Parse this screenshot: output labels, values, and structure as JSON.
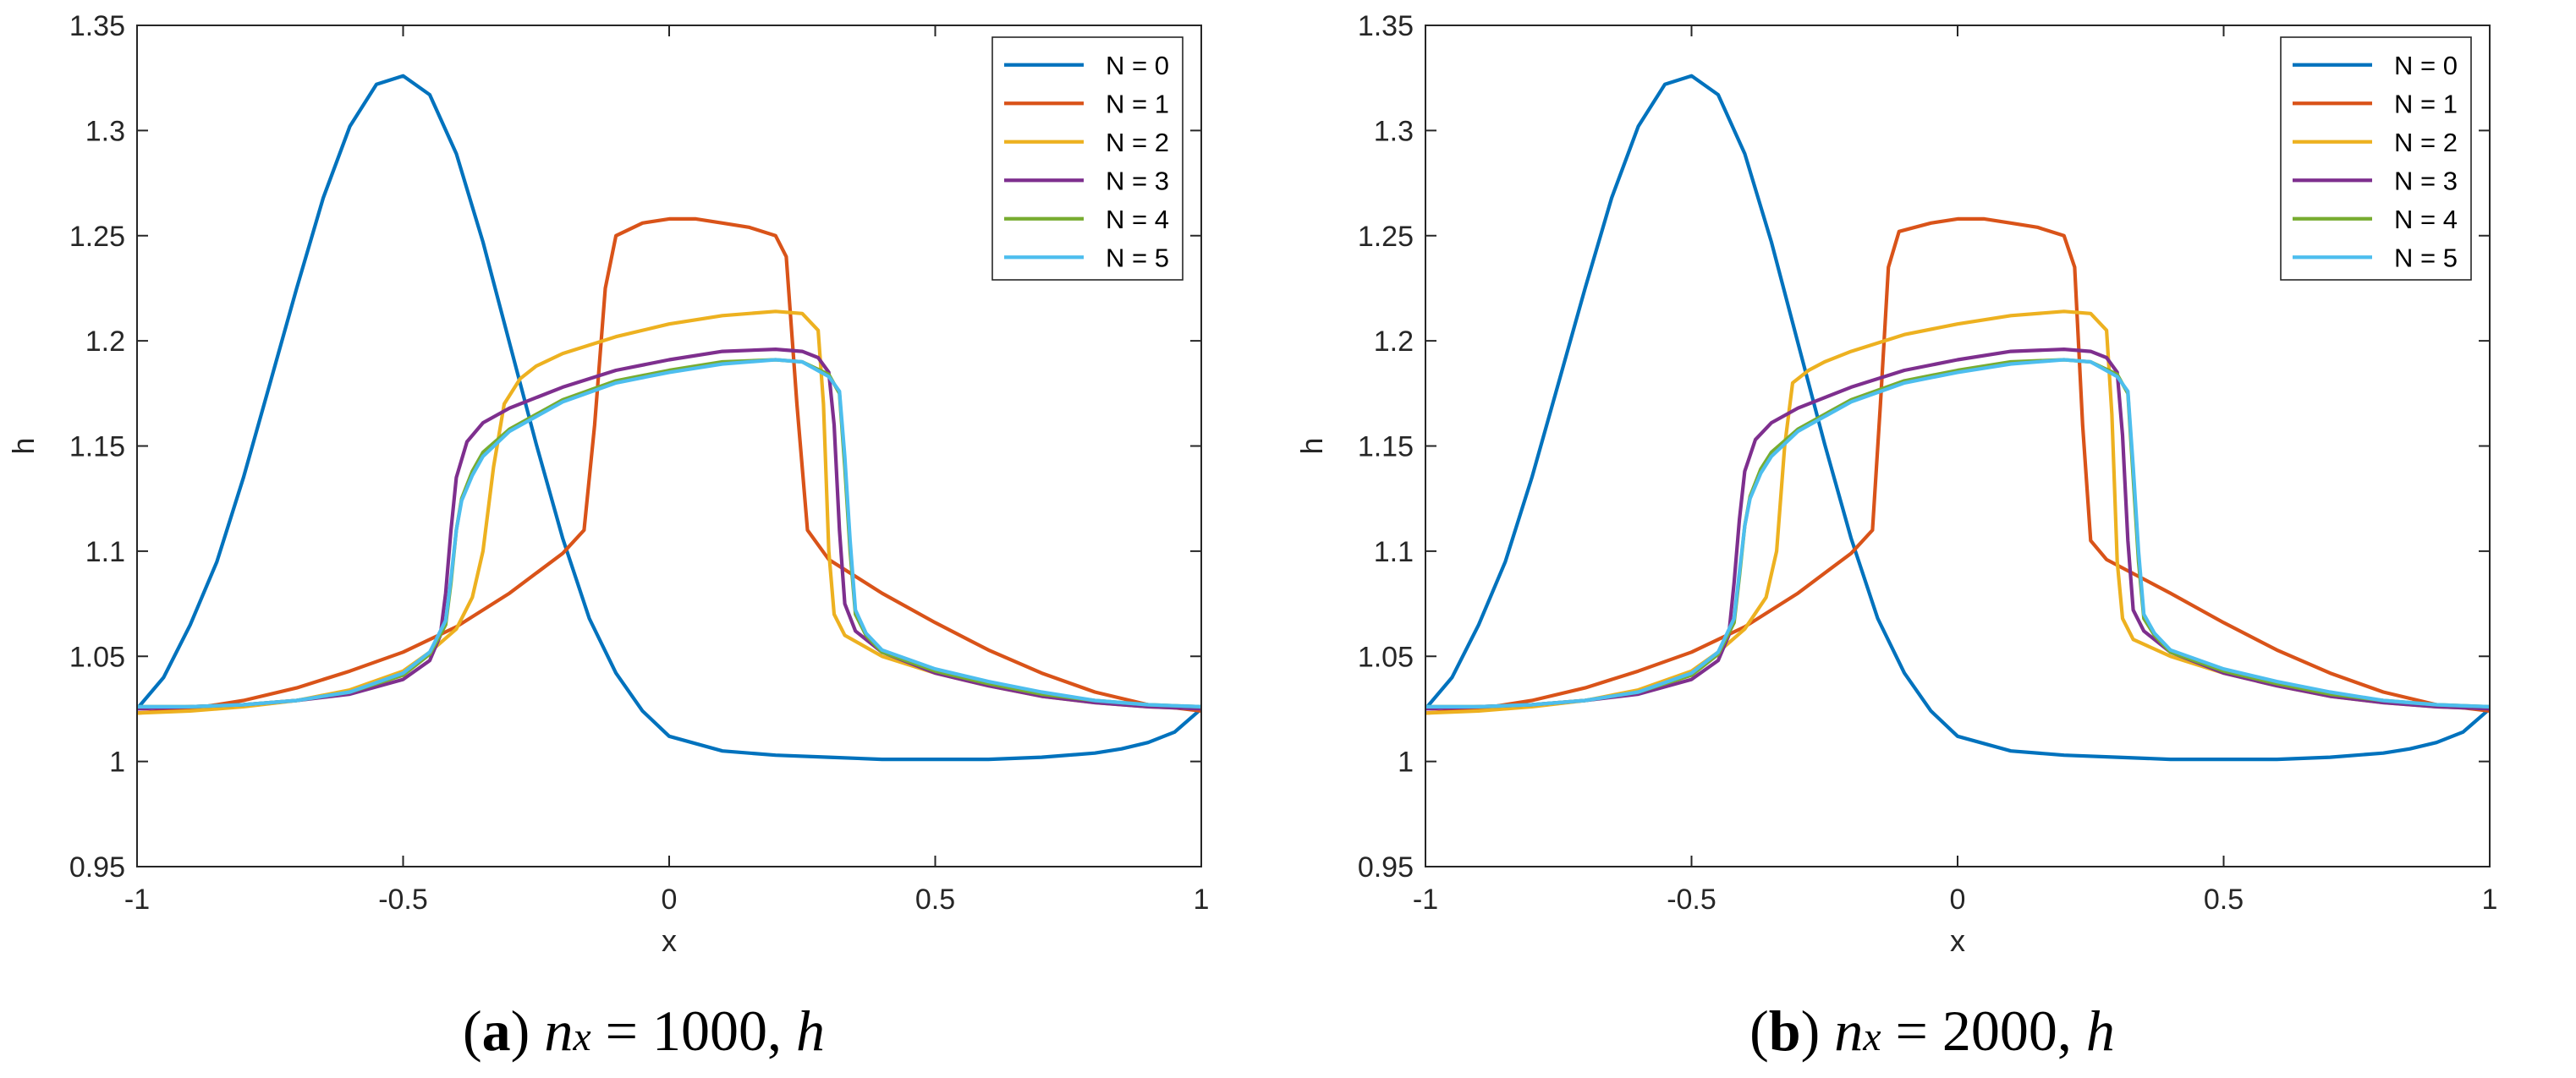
{
  "chart_data": [
    {
      "type": "line",
      "panel_label": "(a)",
      "caption": {
        "label": "a",
        "n": "n",
        "sub": "x",
        "eq": " = 1000,",
        "var": "h"
      },
      "xlabel": "x",
      "ylabel": "h",
      "xlim": [
        -1,
        1
      ],
      "ylim": [
        0.95,
        1.35
      ],
      "xticks": [
        -1,
        -0.5,
        0,
        0.5,
        1
      ],
      "yticks": [
        0.95,
        1,
        1.05,
        1.1,
        1.15,
        1.2,
        1.25,
        1.3,
        1.35
      ],
      "legend_position": "top-right",
      "series": [
        {
          "name": "N = 0",
          "color": "#0072BD",
          "x": [
            -1,
            -0.95,
            -0.9,
            -0.85,
            -0.8,
            -0.75,
            -0.7,
            -0.65,
            -0.6,
            -0.55,
            -0.5,
            -0.45,
            -0.4,
            -0.35,
            -0.3,
            -0.25,
            -0.2,
            -0.15,
            -0.1,
            -0.05,
            0,
            0.1,
            0.2,
            0.3,
            0.4,
            0.5,
            0.6,
            0.7,
            0.8,
            0.85,
            0.9,
            0.95,
            1
          ],
          "y": [
            1.025,
            1.04,
            1.065,
            1.095,
            1.135,
            1.18,
            1.225,
            1.268,
            1.302,
            1.322,
            1.326,
            1.317,
            1.289,
            1.247,
            1.199,
            1.151,
            1.106,
            1.068,
            1.042,
            1.024,
            1.012,
            1.005,
            1.003,
            1.002,
            1.001,
            1.001,
            1.001,
            1.002,
            1.004,
            1.006,
            1.009,
            1.014,
            1.025
          ]
        },
        {
          "name": "N = 1",
          "color": "#D95319",
          "x": [
            -1,
            -0.9,
            -0.8,
            -0.7,
            -0.6,
            -0.5,
            -0.4,
            -0.3,
            -0.2,
            -0.16,
            -0.14,
            -0.12,
            -0.1,
            -0.05,
            0,
            0.05,
            0.1,
            0.15,
            0.2,
            0.22,
            0.24,
            0.26,
            0.3,
            0.4,
            0.5,
            0.6,
            0.7,
            0.8,
            0.9,
            1
          ],
          "y": [
            1.023,
            1.025,
            1.029,
            1.035,
            1.043,
            1.052,
            1.064,
            1.08,
            1.099,
            1.11,
            1.16,
            1.225,
            1.25,
            1.256,
            1.258,
            1.258,
            1.256,
            1.254,
            1.25,
            1.24,
            1.17,
            1.11,
            1.096,
            1.08,
            1.066,
            1.053,
            1.042,
            1.033,
            1.027,
            1.024
          ]
        },
        {
          "name": "N = 2",
          "color": "#EDB120",
          "x": [
            -1,
            -0.9,
            -0.8,
            -0.7,
            -0.6,
            -0.5,
            -0.45,
            -0.4,
            -0.37,
            -0.35,
            -0.33,
            -0.31,
            -0.28,
            -0.25,
            -0.2,
            -0.1,
            0,
            0.1,
            0.2,
            0.25,
            0.28,
            0.29,
            0.3,
            0.31,
            0.33,
            0.4,
            0.5,
            0.6,
            0.7,
            0.8,
            0.9,
            1
          ],
          "y": [
            1.023,
            1.024,
            1.026,
            1.029,
            1.034,
            1.043,
            1.052,
            1.063,
            1.078,
            1.1,
            1.14,
            1.17,
            1.182,
            1.188,
            1.194,
            1.202,
            1.208,
            1.212,
            1.214,
            1.213,
            1.205,
            1.17,
            1.1,
            1.07,
            1.06,
            1.05,
            1.042,
            1.036,
            1.031,
            1.028,
            1.026,
            1.025
          ]
        },
        {
          "name": "N = 3",
          "color": "#7E2F8E",
          "x": [
            -1,
            -0.9,
            -0.8,
            -0.7,
            -0.6,
            -0.5,
            -0.45,
            -0.43,
            -0.42,
            -0.41,
            -0.4,
            -0.38,
            -0.35,
            -0.3,
            -0.2,
            -0.1,
            0,
            0.1,
            0.2,
            0.25,
            0.28,
            0.3,
            0.31,
            0.32,
            0.33,
            0.35,
            0.4,
            0.5,
            0.6,
            0.7,
            0.8,
            0.9,
            1
          ],
          "y": [
            1.025,
            1.026,
            1.027,
            1.029,
            1.032,
            1.039,
            1.048,
            1.06,
            1.08,
            1.11,
            1.135,
            1.152,
            1.161,
            1.168,
            1.178,
            1.186,
            1.191,
            1.195,
            1.196,
            1.195,
            1.192,
            1.185,
            1.16,
            1.11,
            1.075,
            1.062,
            1.052,
            1.042,
            1.036,
            1.031,
            1.028,
            1.026,
            1.025
          ]
        },
        {
          "name": "N = 4",
          "color": "#77AC30",
          "x": [
            -1,
            -0.9,
            -0.8,
            -0.7,
            -0.6,
            -0.5,
            -0.45,
            -0.42,
            -0.41,
            -0.4,
            -0.39,
            -0.37,
            -0.35,
            -0.3,
            -0.2,
            -0.1,
            0,
            0.1,
            0.2,
            0.25,
            0.3,
            0.32,
            0.33,
            0.34,
            0.35,
            0.37,
            0.4,
            0.5,
            0.6,
            0.7,
            0.8,
            0.9,
            1
          ],
          "y": [
            1.026,
            1.026,
            1.027,
            1.029,
            1.033,
            1.041,
            1.051,
            1.065,
            1.085,
            1.11,
            1.125,
            1.138,
            1.147,
            1.158,
            1.172,
            1.181,
            1.186,
            1.19,
            1.191,
            1.19,
            1.184,
            1.175,
            1.14,
            1.1,
            1.07,
            1.06,
            1.052,
            1.043,
            1.037,
            1.032,
            1.029,
            1.027,
            1.026
          ]
        },
        {
          "name": "N = 5",
          "color": "#4DBEEE",
          "x": [
            -1,
            -0.9,
            -0.8,
            -0.7,
            -0.6,
            -0.5,
            -0.45,
            -0.42,
            -0.41,
            -0.4,
            -0.39,
            -0.37,
            -0.35,
            -0.3,
            -0.2,
            -0.1,
            0,
            0.1,
            0.2,
            0.25,
            0.3,
            0.32,
            0.33,
            0.34,
            0.35,
            0.37,
            0.4,
            0.5,
            0.6,
            0.7,
            0.8,
            0.9,
            1
          ],
          "y": [
            1.026,
            1.026,
            1.027,
            1.029,
            1.033,
            1.042,
            1.052,
            1.067,
            1.087,
            1.11,
            1.124,
            1.136,
            1.145,
            1.157,
            1.171,
            1.18,
            1.185,
            1.189,
            1.191,
            1.19,
            1.183,
            1.176,
            1.145,
            1.105,
            1.072,
            1.061,
            1.053,
            1.044,
            1.038,
            1.033,
            1.029,
            1.027,
            1.026
          ]
        }
      ]
    },
    {
      "type": "line",
      "panel_label": "(b)",
      "caption": {
        "label": "b",
        "n": "n",
        "sub": "x",
        "eq": " = 2000,",
        "var": "h"
      },
      "xlabel": "x",
      "ylabel": "h",
      "xlim": [
        -1,
        1
      ],
      "ylim": [
        0.95,
        1.35
      ],
      "xticks": [
        -1,
        -0.5,
        0,
        0.5,
        1
      ],
      "yticks": [
        0.95,
        1,
        1.05,
        1.1,
        1.15,
        1.2,
        1.25,
        1.3,
        1.35
      ],
      "legend_position": "top-right",
      "series": [
        {
          "name": "N = 0",
          "color": "#0072BD",
          "x": [
            -1,
            -0.95,
            -0.9,
            -0.85,
            -0.8,
            -0.75,
            -0.7,
            -0.65,
            -0.6,
            -0.55,
            -0.5,
            -0.45,
            -0.4,
            -0.35,
            -0.3,
            -0.25,
            -0.2,
            -0.15,
            -0.1,
            -0.05,
            0,
            0.1,
            0.2,
            0.3,
            0.4,
            0.5,
            0.6,
            0.7,
            0.8,
            0.85,
            0.9,
            0.95,
            1
          ],
          "y": [
            1.025,
            1.04,
            1.065,
            1.095,
            1.135,
            1.18,
            1.225,
            1.268,
            1.302,
            1.322,
            1.326,
            1.317,
            1.289,
            1.247,
            1.199,
            1.151,
            1.106,
            1.068,
            1.042,
            1.024,
            1.012,
            1.005,
            1.003,
            1.002,
            1.001,
            1.001,
            1.001,
            1.002,
            1.004,
            1.006,
            1.009,
            1.014,
            1.025
          ]
        },
        {
          "name": "N = 1",
          "color": "#D95319",
          "x": [
            -1,
            -0.9,
            -0.8,
            -0.7,
            -0.6,
            -0.5,
            -0.4,
            -0.3,
            -0.2,
            -0.16,
            -0.145,
            -0.13,
            -0.11,
            -0.05,
            0,
            0.05,
            0.1,
            0.15,
            0.2,
            0.22,
            0.235,
            0.25,
            0.28,
            0.4,
            0.5,
            0.6,
            0.7,
            0.8,
            0.9,
            1
          ],
          "y": [
            1.023,
            1.025,
            1.029,
            1.035,
            1.043,
            1.052,
            1.064,
            1.08,
            1.099,
            1.11,
            1.17,
            1.235,
            1.252,
            1.256,
            1.258,
            1.258,
            1.256,
            1.254,
            1.25,
            1.235,
            1.16,
            1.105,
            1.096,
            1.08,
            1.066,
            1.053,
            1.042,
            1.033,
            1.027,
            1.024
          ]
        },
        {
          "name": "N = 2",
          "color": "#EDB120",
          "x": [
            -1,
            -0.9,
            -0.8,
            -0.7,
            -0.6,
            -0.5,
            -0.45,
            -0.4,
            -0.36,
            -0.34,
            -0.325,
            -0.31,
            -0.28,
            -0.25,
            -0.2,
            -0.1,
            0,
            0.1,
            0.2,
            0.25,
            0.28,
            0.29,
            0.3,
            0.31,
            0.33,
            0.4,
            0.5,
            0.6,
            0.7,
            0.8,
            0.9,
            1
          ],
          "y": [
            1.023,
            1.024,
            1.026,
            1.029,
            1.034,
            1.043,
            1.052,
            1.063,
            1.078,
            1.1,
            1.15,
            1.18,
            1.186,
            1.19,
            1.195,
            1.203,
            1.208,
            1.212,
            1.214,
            1.213,
            1.205,
            1.165,
            1.095,
            1.068,
            1.058,
            1.05,
            1.042,
            1.036,
            1.031,
            1.028,
            1.026,
            1.025
          ]
        },
        {
          "name": "N = 3",
          "color": "#7E2F8E",
          "x": [
            -1,
            -0.9,
            -0.8,
            -0.7,
            -0.6,
            -0.5,
            -0.45,
            -0.43,
            -0.42,
            -0.41,
            -0.4,
            -0.38,
            -0.35,
            -0.3,
            -0.2,
            -0.1,
            0,
            0.1,
            0.2,
            0.25,
            0.28,
            0.3,
            0.31,
            0.32,
            0.33,
            0.35,
            0.4,
            0.5,
            0.6,
            0.7,
            0.8,
            0.9,
            1
          ],
          "y": [
            1.025,
            1.026,
            1.027,
            1.029,
            1.032,
            1.039,
            1.048,
            1.06,
            1.085,
            1.115,
            1.138,
            1.153,
            1.161,
            1.168,
            1.178,
            1.186,
            1.191,
            1.195,
            1.196,
            1.195,
            1.192,
            1.185,
            1.155,
            1.105,
            1.072,
            1.062,
            1.052,
            1.042,
            1.036,
            1.031,
            1.028,
            1.026,
            1.025
          ]
        },
        {
          "name": "N = 4",
          "color": "#77AC30",
          "x": [
            -1,
            -0.9,
            -0.8,
            -0.7,
            -0.6,
            -0.5,
            -0.45,
            -0.42,
            -0.41,
            -0.4,
            -0.39,
            -0.37,
            -0.35,
            -0.3,
            -0.2,
            -0.1,
            0,
            0.1,
            0.2,
            0.25,
            0.3,
            0.32,
            0.33,
            0.34,
            0.35,
            0.37,
            0.4,
            0.5,
            0.6,
            0.7,
            0.8,
            0.9,
            1
          ],
          "y": [
            1.026,
            1.026,
            1.027,
            1.029,
            1.033,
            1.041,
            1.051,
            1.066,
            1.088,
            1.112,
            1.126,
            1.139,
            1.147,
            1.158,
            1.172,
            1.181,
            1.186,
            1.19,
            1.191,
            1.19,
            1.184,
            1.175,
            1.135,
            1.095,
            1.068,
            1.06,
            1.052,
            1.043,
            1.037,
            1.032,
            1.029,
            1.027,
            1.026
          ]
        },
        {
          "name": "N = 5",
          "color": "#4DBEEE",
          "x": [
            -1,
            -0.9,
            -0.8,
            -0.7,
            -0.6,
            -0.5,
            -0.45,
            -0.42,
            -0.41,
            -0.4,
            -0.39,
            -0.37,
            -0.35,
            -0.3,
            -0.2,
            -0.1,
            0,
            0.1,
            0.2,
            0.25,
            0.3,
            0.32,
            0.33,
            0.34,
            0.35,
            0.37,
            0.4,
            0.5,
            0.6,
            0.7,
            0.8,
            0.9,
            1
          ],
          "y": [
            1.026,
            1.026,
            1.027,
            1.029,
            1.033,
            1.042,
            1.052,
            1.068,
            1.09,
            1.112,
            1.125,
            1.137,
            1.145,
            1.157,
            1.171,
            1.18,
            1.185,
            1.189,
            1.191,
            1.19,
            1.183,
            1.176,
            1.14,
            1.1,
            1.07,
            1.061,
            1.053,
            1.044,
            1.038,
            1.033,
            1.029,
            1.027,
            1.026
          ]
        }
      ]
    }
  ]
}
